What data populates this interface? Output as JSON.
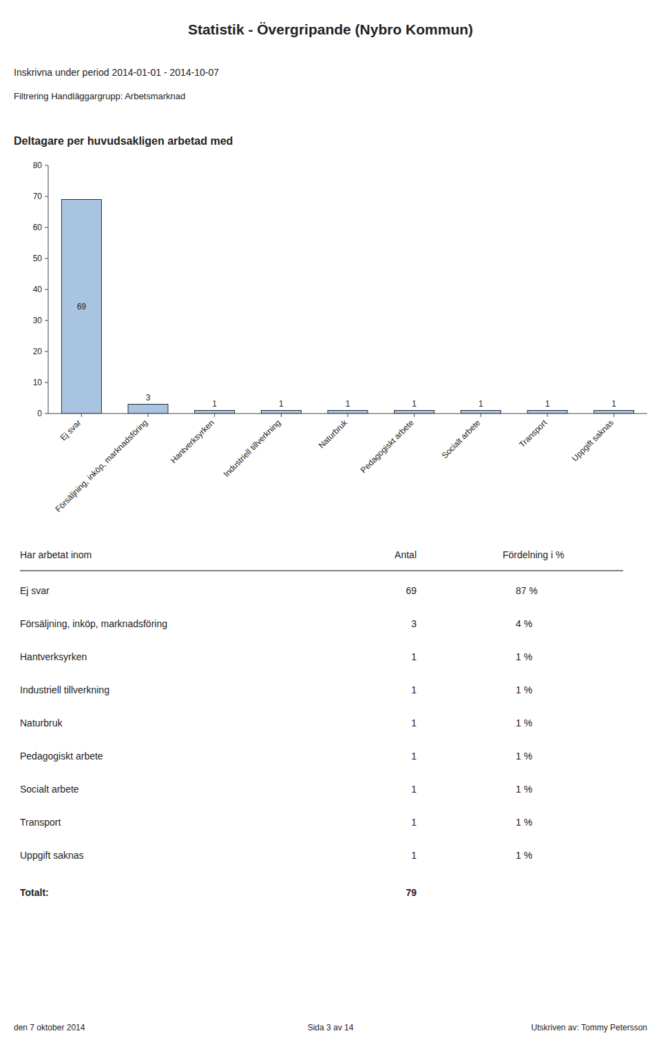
{
  "page": {
    "title": "Statistik - Övergripande  (Nybro Kommun)",
    "subtitles": [
      "Inskrivna under period 2014-01-01 - 2014-10-07",
      "Filtrering Handläggargrupp: Arbetsmarknad"
    ],
    "table": {
      "header": [
        "Har arbetat inom",
        "Antal",
        "Fördelning i %"
      ],
      "rows": [
        [
          "Ej svar",
          "69",
          "87 %"
        ],
        [
          "Försäljning, inköp, marknadsföring",
          "3",
          "4 %"
        ],
        [
          "Hantverksyrken",
          "1",
          "1 %"
        ],
        [
          "Industriell tillverkning",
          "1",
          "1 %"
        ],
        [
          "Naturbruk",
          "1",
          "1 %"
        ],
        [
          "Pedagogiskt arbete",
          "1",
          "1 %"
        ],
        [
          "Socialt arbete",
          "1",
          "1 %"
        ],
        [
          "Transport",
          "1",
          "1 %"
        ],
        [
          "Uppgift saknas",
          "1",
          "1 %"
        ]
      ],
      "total": [
        "Totalt:",
        "79"
      ]
    },
    "footer": [
      "den 7 oktober 2014",
      "Sida 3 av 14",
      "Utskriven av: Tommy Petersson"
    ]
  },
  "chart_data": {
    "type": "bar",
    "title": "Deltagare per huvudsakligen arbetad med",
    "categories": [
      "Ej svar",
      "Försäljning, inköp, marknadsföring",
      "Hantverksyrken",
      "Industriell tillverkning",
      "Naturbruk",
      "Pedagogiskt arbete",
      "Socialt arbete",
      "Transport",
      "Uppgift saknas"
    ],
    "values": [
      69,
      3,
      1,
      1,
      1,
      1,
      1,
      1,
      1
    ],
    "color": "#a8c4e0",
    "ylim": [
      0,
      80
    ],
    "yticks": [
      0,
      10,
      20,
      30,
      40,
      50,
      60,
      70,
      80
    ],
    "grid": false,
    "data_labels": true
  }
}
